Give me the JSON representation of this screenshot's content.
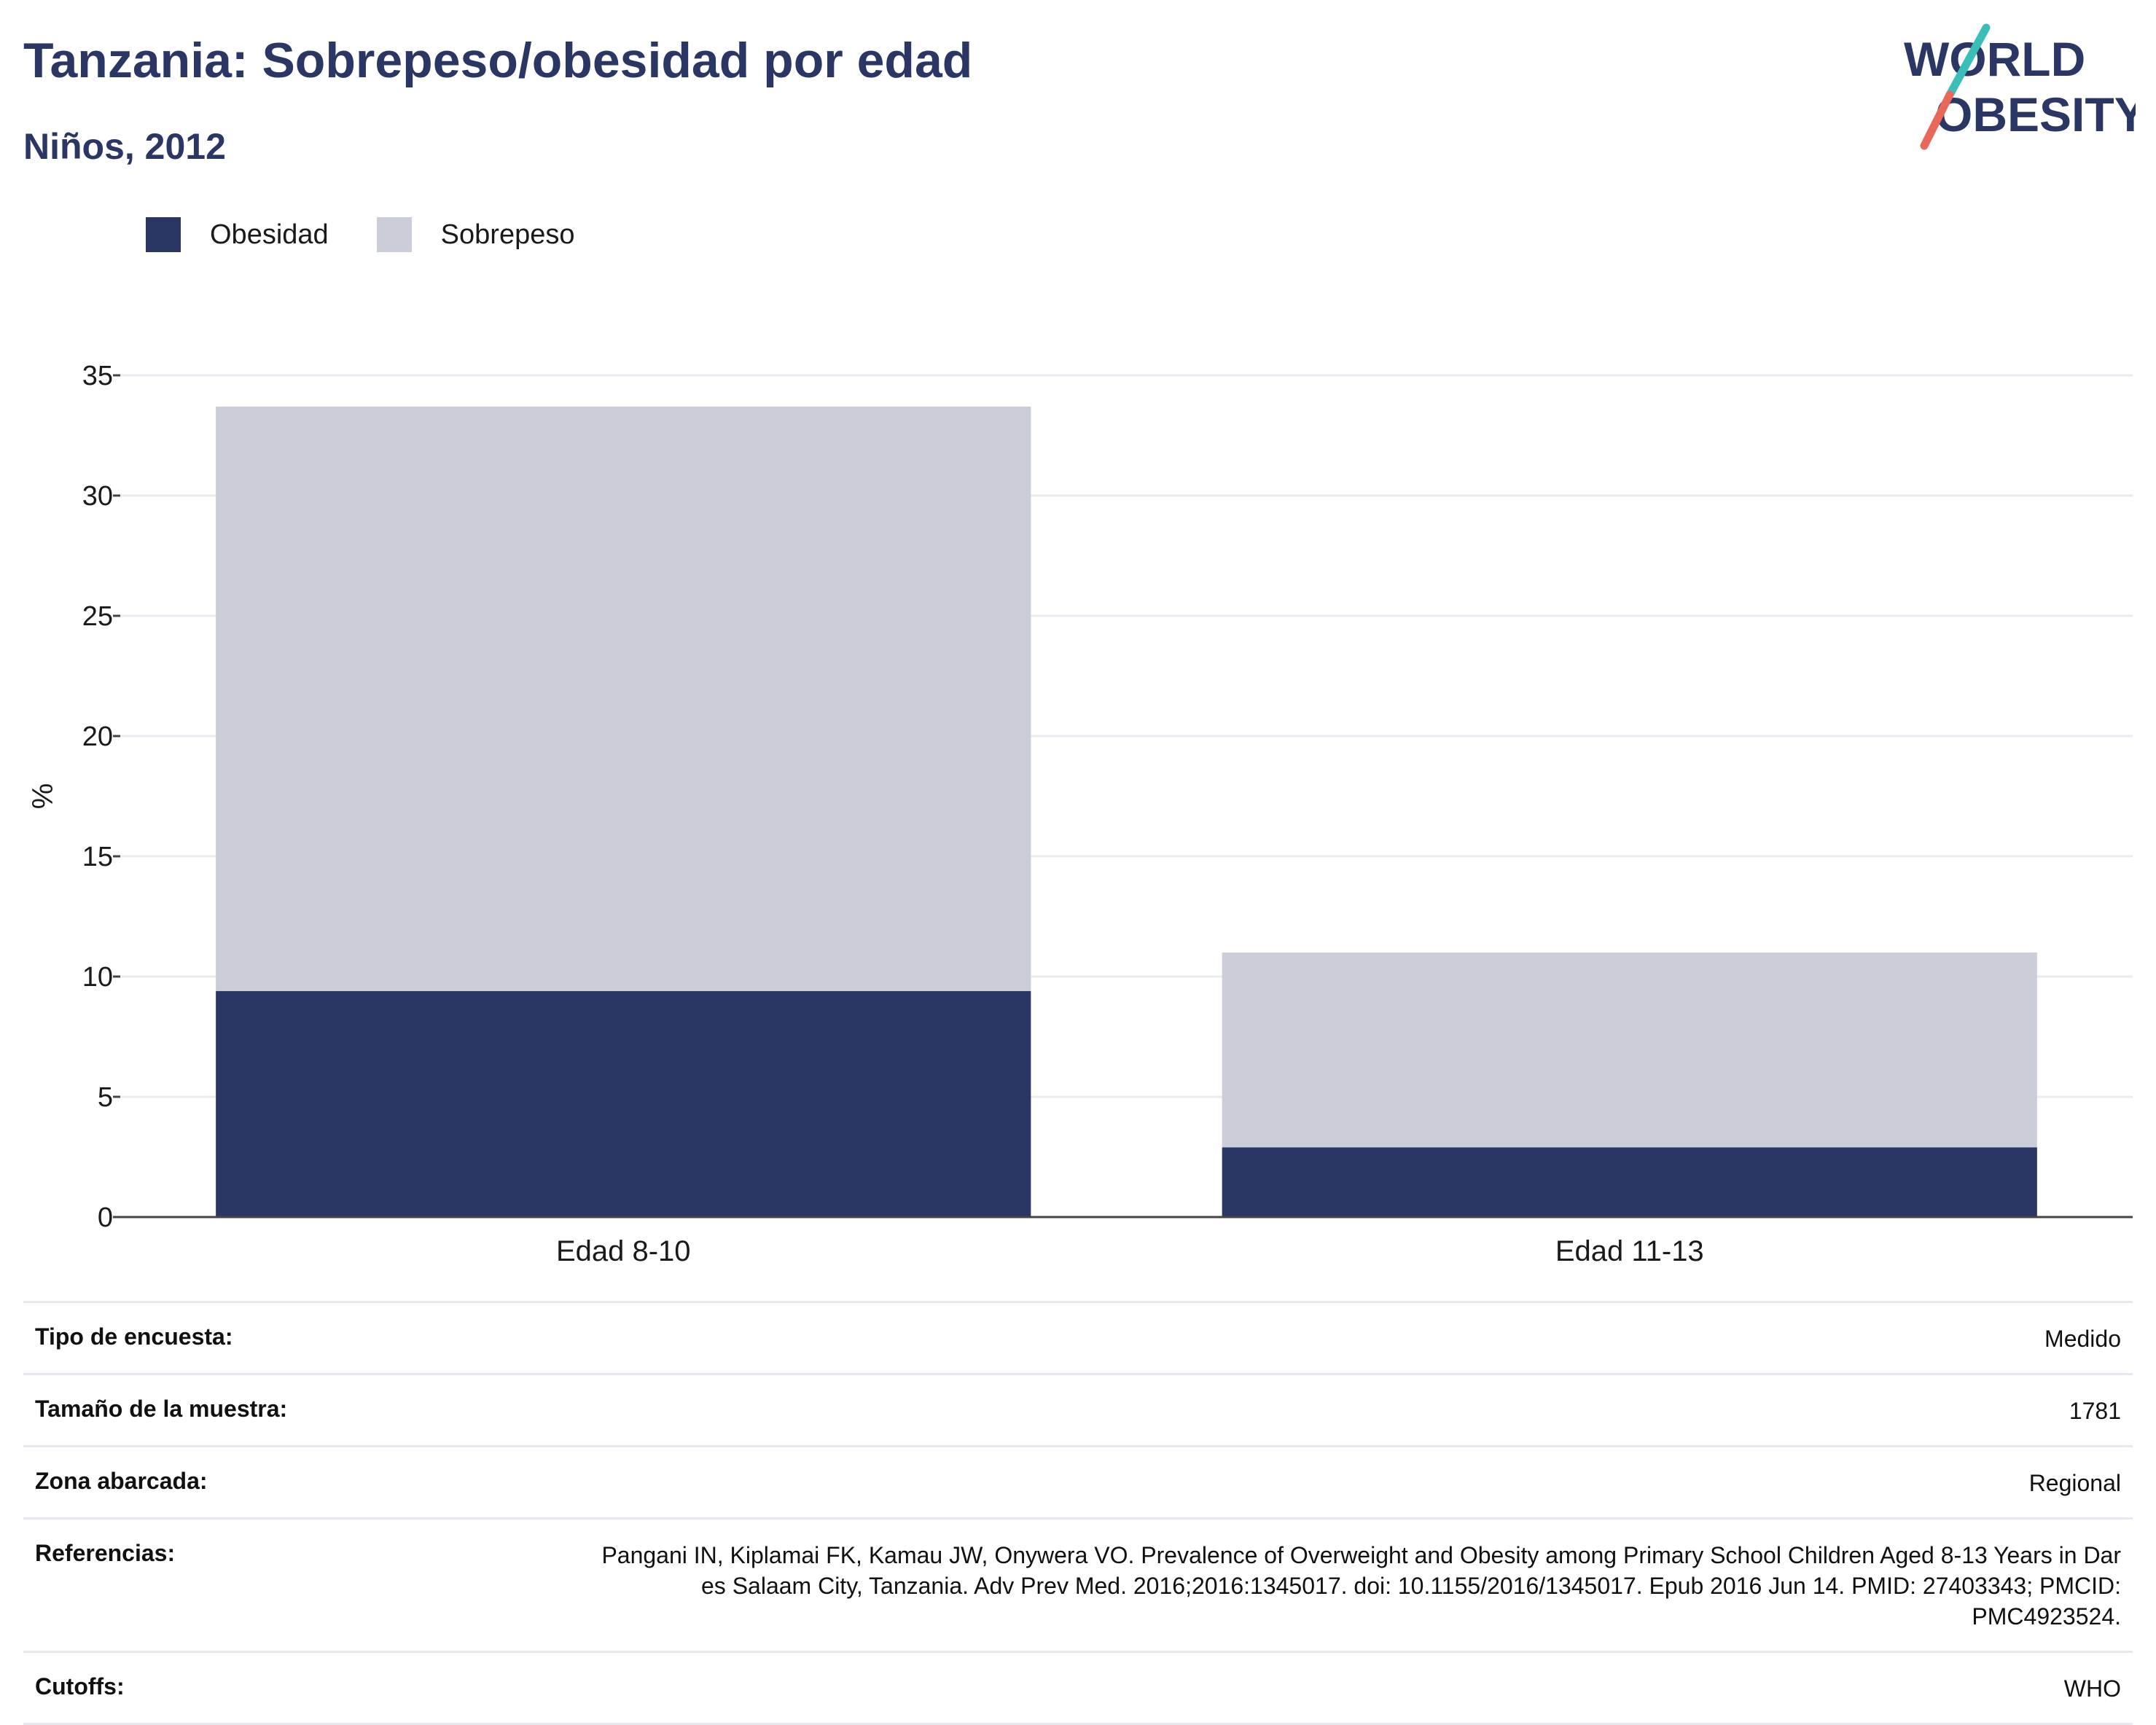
{
  "header": {
    "title": "Tanzania: Sobrepeso/obesidad por edad",
    "subtitle": "Niños, 2012"
  },
  "logo": {
    "line1": "WORLD",
    "line2": "OBESITY"
  },
  "colors": {
    "obesidad": "#2a3664",
    "sobrepeso": "#cbcdd8",
    "accent_teal": "#3bbdb8",
    "accent_coral": "#e8685a"
  },
  "chart_data": {
    "type": "bar",
    "stacked": true,
    "categories": [
      "Edad 8-10",
      "Edad 11-13"
    ],
    "series": [
      {
        "name": "Obesidad",
        "values": [
          9.4,
          2.9
        ]
      },
      {
        "name": "Sobrepeso",
        "values": [
          24.3,
          8.1
        ]
      }
    ],
    "ylabel": "%",
    "ylim": [
      0,
      35
    ],
    "yticks": [
      0,
      5,
      10,
      15,
      20,
      25,
      30,
      35
    ],
    "grid": true,
    "legend_position": "top-left"
  },
  "info": [
    {
      "label": "Tipo de encuesta:",
      "value": "Medido"
    },
    {
      "label": "Tamaño de la muestra:",
      "value": "1781"
    },
    {
      "label": "Zona abarcada:",
      "value": "Regional"
    },
    {
      "label": "Referencias:",
      "value": "Pangani IN, Kiplamai FK, Kamau JW, Onywera VO. Prevalence of Overweight and Obesity among Primary School Children Aged 8-13 Years in Dar es Salaam City, Tanzania. Adv Prev Med. 2016;2016:1345017. doi: 10.1155/2016/1345017. Epub 2016 Jun 14. PMID: 27403343; PMCID: PMC4923524."
    },
    {
      "label": "Cutoffs:",
      "value": "WHO"
    }
  ]
}
